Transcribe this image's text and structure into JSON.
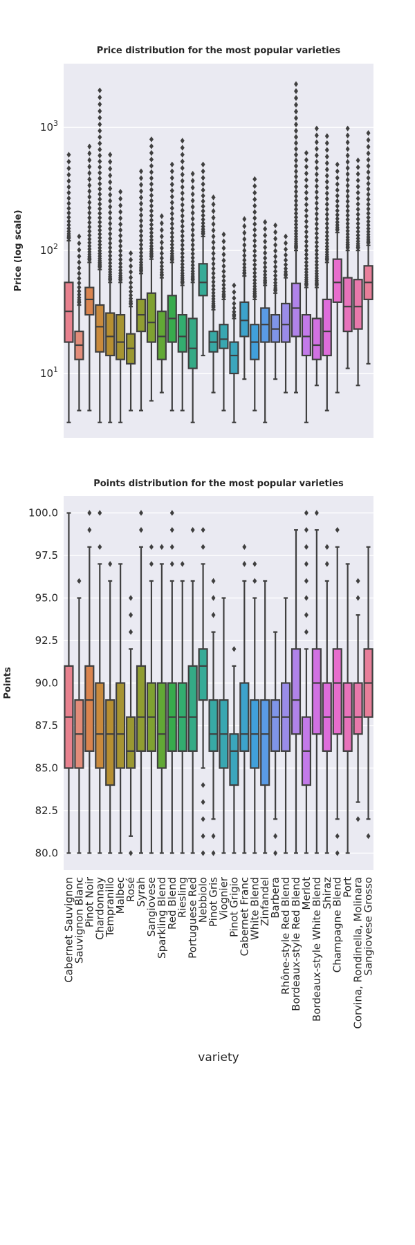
{
  "chart_data": [
    {
      "type": "box",
      "title": "Price distribution for the most popular varieties",
      "ylabel": "Price (log scale)",
      "yscale": "log",
      "ylim": [
        3,
        3300
      ],
      "yticks": [
        {
          "value": 10,
          "label": "10",
          "sup": "1"
        },
        {
          "value": 100,
          "label": "10",
          "sup": "2"
        },
        {
          "value": 1000,
          "label": "10",
          "sup": "3"
        }
      ],
      "grid": true,
      "categories": [
        "Cabernet Sauvignon",
        "Sauvignon Blanc",
        "Pinot Noir",
        "Chardonnay",
        "Tempranillo",
        "Malbec",
        "Rosé",
        "Syrah",
        "Sangiovese",
        "Sparkling Blend",
        "Red Blend",
        "Riesling",
        "Portuguese Red",
        "Nebbiolo",
        "Pinot Gris",
        "Viognier",
        "Pinot Grigio",
        "Cabernet Franc",
        "White Blend",
        "Zinfandel",
        "Barbera",
        "Rhône-style Red Blend",
        "Bordeaux-style Red Blend",
        "Merlot",
        "Bordeaux-style White Blend",
        "Shiraz",
        "Champagne Blend",
        "Port",
        "Corvina, Rondinella, Molinara",
        "Sangiovese Grosso"
      ],
      "colors": [
        "#e8828f",
        "#e28c7a",
        "#d9844f",
        "#c98a3d",
        "#b68f32",
        "#a69432",
        "#9a9832",
        "#909d32",
        "#7fa131",
        "#62a836",
        "#38ab4d",
        "#33ad6f",
        "#35aa86",
        "#36ab97",
        "#38a9a5",
        "#39a7b1",
        "#3ba6bd",
        "#3da3cb",
        "#41a0db",
        "#5a9be6",
        "#7f95e8",
        "#9a8ce9",
        "#b083e9",
        "#c37ae9",
        "#d171e2",
        "#de6ddb",
        "#e76dcd",
        "#e873bb",
        "#e879ab",
        "#e87f9a"
      ],
      "boxes": [
        {
          "whislo": 4,
          "q1": 18,
          "med": 32,
          "q3": 55,
          "whishi": 120,
          "outlier_top": 600
        },
        {
          "whislo": 5,
          "q1": 13,
          "med": 17,
          "q3": 22,
          "whishi": 36,
          "outlier_top": 130
        },
        {
          "whislo": 5,
          "q1": 30,
          "med": 40,
          "q3": 50,
          "whishi": 80,
          "outlier_top": 700
        },
        {
          "whislo": 4,
          "q1": 15,
          "med": 24,
          "q3": 36,
          "whishi": 70,
          "outlier_top": 2000
        },
        {
          "whislo": 4,
          "q1": 14,
          "med": 20,
          "q3": 31,
          "whishi": 55,
          "outlier_top": 600
        },
        {
          "whislo": 4,
          "q1": 13,
          "med": 18,
          "q3": 30,
          "whishi": 55,
          "outlier_top": 300
        },
        {
          "whislo": 5,
          "q1": 12,
          "med": 16,
          "q3": 21,
          "whishi": 35,
          "outlier_top": 95
        },
        {
          "whislo": 5,
          "q1": 22,
          "med": 30,
          "q3": 40,
          "whishi": 65,
          "outlier_top": 440
        },
        {
          "whislo": 6,
          "q1": 18,
          "med": 26,
          "q3": 45,
          "whishi": 85,
          "outlier_top": 800
        },
        {
          "whislo": 7,
          "q1": 13,
          "med": 20,
          "q3": 32,
          "whishi": 60,
          "outlier_top": 190
        },
        {
          "whislo": 5,
          "q1": 18,
          "med": 28,
          "q3": 43,
          "whishi": 80,
          "outlier_top": 500
        },
        {
          "whislo": 5,
          "q1": 15,
          "med": 20,
          "q3": 30,
          "whishi": 52,
          "outlier_top": 780
        },
        {
          "whislo": 4,
          "q1": 11,
          "med": 16,
          "q3": 28,
          "whishi": 55,
          "outlier_top": 420
        },
        {
          "whislo": 14,
          "q1": 43,
          "med": 55,
          "q3": 78,
          "whishi": 130,
          "outlier_top": 500
        },
        {
          "whislo": 7,
          "q1": 15,
          "med": 18,
          "q3": 22,
          "whishi": 33,
          "outlier_top": 270
        },
        {
          "whislo": 5,
          "q1": 16,
          "med": 19,
          "q3": 25,
          "whishi": 40,
          "outlier_top": 135
        },
        {
          "whislo": 4,
          "q1": 10,
          "med": 14,
          "q3": 18,
          "whishi": 28,
          "outlier_top": 52
        },
        {
          "whislo": 9,
          "q1": 20,
          "med": 27,
          "q3": 38,
          "whishi": 62,
          "outlier_top": 180
        },
        {
          "whislo": 5,
          "q1": 13,
          "med": 18,
          "q3": 25,
          "whishi": 40,
          "outlier_top": 380
        },
        {
          "whislo": 4,
          "q1": 18,
          "med": 25,
          "q3": 34,
          "whishi": 52,
          "outlier_top": 170
        },
        {
          "whislo": 9,
          "q1": 18,
          "med": 23,
          "q3": 30,
          "whishi": 45,
          "outlier_top": 160
        },
        {
          "whislo": 7,
          "q1": 18,
          "med": 25,
          "q3": 37,
          "whishi": 60,
          "outlier_top": 130
        },
        {
          "whislo": 7,
          "q1": 20,
          "med": 34,
          "q3": 54,
          "whishi": 100,
          "outlier_top": 2250
        },
        {
          "whislo": 4,
          "q1": 14,
          "med": 20,
          "q3": 30,
          "whishi": 50,
          "outlier_top": 620
        },
        {
          "whislo": 8,
          "q1": 13,
          "med": 17,
          "q3": 28,
          "whishi": 50,
          "outlier_top": 980
        },
        {
          "whislo": 5,
          "q1": 14,
          "med": 22,
          "q3": 40,
          "whishi": 80,
          "outlier_top": 850
        },
        {
          "whislo": 7,
          "q1": 38,
          "med": 55,
          "q3": 85,
          "whishi": 140,
          "outlier_top": 500
        },
        {
          "whislo": 11,
          "q1": 22,
          "med": 35,
          "q3": 60,
          "whishi": 100,
          "outlier_top": 980
        },
        {
          "whislo": 8,
          "q1": 23,
          "med": 35,
          "q3": 58,
          "whishi": 100,
          "outlier_top": 540
        },
        {
          "whislo": 12,
          "q1": 40,
          "med": 55,
          "q3": 75,
          "whishi": 110,
          "outlier_top": 900
        }
      ]
    },
    {
      "type": "box",
      "title": "Points distribution for the most popular varieties",
      "ylabel": "Points",
      "xlabel": "variety",
      "ylim": [
        79,
        101
      ],
      "yticks": [
        {
          "value": 80,
          "label": "80.0"
        },
        {
          "value": 82.5,
          "label": "82.5"
        },
        {
          "value": 85,
          "label": "85.0"
        },
        {
          "value": 87.5,
          "label": "87.5"
        },
        {
          "value": 90,
          "label": "90.0"
        },
        {
          "value": 92.5,
          "label": "92.5"
        },
        {
          "value": 95,
          "label": "95.0"
        },
        {
          "value": 97.5,
          "label": "97.5"
        },
        {
          "value": 100,
          "label": "100.0"
        }
      ],
      "grid": true,
      "boxes": [
        {
          "whislo": 80,
          "q1": 85,
          "med": 88,
          "q3": 91,
          "whishi": 100,
          "outliers": []
        },
        {
          "whislo": 80,
          "q1": 85,
          "med": 87,
          "q3": 89,
          "whishi": 95,
          "outliers": [
            96
          ]
        },
        {
          "whislo": 80,
          "q1": 86,
          "med": 89,
          "q3": 91,
          "whishi": 98,
          "outliers": [
            99,
            100
          ]
        },
        {
          "whislo": 80,
          "q1": 85,
          "med": 87,
          "q3": 90,
          "whishi": 97,
          "outliers": [
            98,
            100
          ]
        },
        {
          "whislo": 80,
          "q1": 84,
          "med": 87,
          "q3": 89,
          "whishi": 96,
          "outliers": [
            97
          ]
        },
        {
          "whislo": 80,
          "q1": 85,
          "med": 87,
          "q3": 90,
          "whishi": 97,
          "outliers": []
        },
        {
          "whislo": 81,
          "q1": 85,
          "med": 86,
          "q3": 88,
          "whishi": 92,
          "outliers": [
            80,
            93,
            94,
            95
          ]
        },
        {
          "whislo": 80,
          "q1": 86,
          "med": 88,
          "q3": 91,
          "whishi": 98,
          "outliers": [
            99,
            100
          ]
        },
        {
          "whislo": 80,
          "q1": 86,
          "med": 88,
          "q3": 90,
          "whishi": 96,
          "outliers": [
            97,
            98
          ]
        },
        {
          "whislo": 80,
          "q1": 85,
          "med": 87,
          "q3": 90,
          "whishi": 97,
          "outliers": [
            98
          ]
        },
        {
          "whislo": 80,
          "q1": 86,
          "med": 88,
          "q3": 90,
          "whishi": 96,
          "outliers": [
            97,
            98,
            99,
            100
          ]
        },
        {
          "whislo": 80,
          "q1": 86,
          "med": 88,
          "q3": 90,
          "whishi": 96,
          "outliers": [
            97
          ]
        },
        {
          "whislo": 80,
          "q1": 86,
          "med": 88,
          "q3": 91,
          "whishi": 96,
          "outliers": [
            99
          ]
        },
        {
          "whislo": 85,
          "q1": 89,
          "med": 91,
          "q3": 92,
          "whishi": 97,
          "outliers": [
            80,
            81,
            82,
            83,
            84,
            98,
            99
          ]
        },
        {
          "whislo": 82,
          "q1": 86,
          "med": 87,
          "q3": 89,
          "whishi": 93,
          "outliers": [
            80,
            81,
            94,
            95,
            96
          ]
        },
        {
          "whislo": 80,
          "q1": 85,
          "med": 87,
          "q3": 89,
          "whishi": 95,
          "outliers": []
        },
        {
          "whislo": 80,
          "q1": 84,
          "med": 86,
          "q3": 87,
          "whishi": 91,
          "outliers": [
            92
          ]
        },
        {
          "whislo": 80,
          "q1": 86,
          "med": 87,
          "q3": 90,
          "whishi": 96,
          "outliers": [
            97,
            98
          ]
        },
        {
          "whislo": 80,
          "q1": 85,
          "med": 87,
          "q3": 89,
          "whishi": 95,
          "outliers": [
            96,
            97
          ]
        },
        {
          "whislo": 80,
          "q1": 84,
          "med": 87,
          "q3": 89,
          "whishi": 96,
          "outliers": []
        },
        {
          "whislo": 82,
          "q1": 86,
          "med": 88,
          "q3": 89,
          "whishi": 93,
          "outliers": [
            80,
            81
          ]
        },
        {
          "whislo": 80,
          "q1": 86,
          "med": 88,
          "q3": 90,
          "whishi": 95,
          "outliers": []
        },
        {
          "whislo": 80,
          "q1": 87,
          "med": 89,
          "q3": 92,
          "whishi": 99,
          "outliers": []
        },
        {
          "whislo": 80,
          "q1": 84,
          "med": 86,
          "q3": 88,
          "whishi": 92,
          "outliers": [
            93,
            94,
            95,
            96,
            97,
            98,
            99,
            100
          ]
        },
        {
          "whislo": 80,
          "q1": 87,
          "med": 90,
          "q3": 92,
          "whishi": 99,
          "outliers": [
            100
          ]
        },
        {
          "whislo": 80,
          "q1": 86,
          "med": 88,
          "q3": 90,
          "whishi": 96,
          "outliers": [
            97,
            98
          ]
        },
        {
          "whislo": 82,
          "q1": 87,
          "med": 90,
          "q3": 92,
          "whishi": 98,
          "outliers": [
            80,
            81,
            99
          ]
        },
        {
          "whislo": 80,
          "q1": 86,
          "med": 88,
          "q3": 90,
          "whishi": 97,
          "outliers": []
        },
        {
          "whislo": 83,
          "q1": 87,
          "med": 88,
          "q3": 90,
          "whishi": 94,
          "outliers": [
            82,
            95,
            96
          ]
        },
        {
          "whislo": 82,
          "q1": 88,
          "med": 90,
          "q3": 92,
          "whishi": 98,
          "outliers": [
            81
          ]
        }
      ]
    }
  ]
}
